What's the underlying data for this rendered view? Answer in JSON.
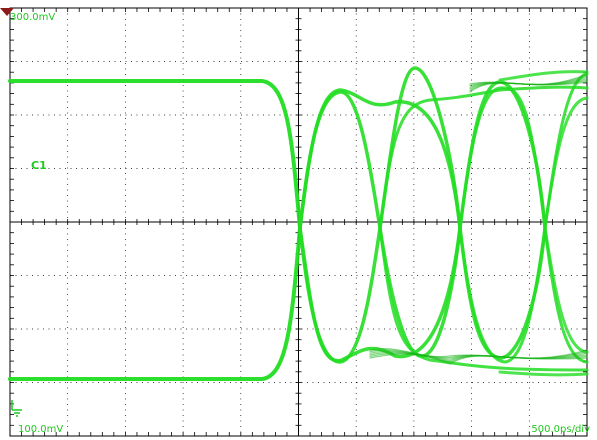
{
  "scope": {
    "top_scale_label": "300.0mV",
    "bottom_scale_label": "100.0mV",
    "time_scale_label": "500.0ps/div",
    "channel_label": "C1",
    "divisions": {
      "horizontal": 10,
      "vertical": 8
    }
  },
  "colors": {
    "background": "#ffffff",
    "grid": "#000000",
    "trace": "#22dd22",
    "trace_dark": "#19b419",
    "label": "#1ec81e",
    "marker": "#8b1a1a"
  },
  "icons": {
    "ground_marker": "ground-icon",
    "channel_marker": "channel-triangle-icon"
  }
}
